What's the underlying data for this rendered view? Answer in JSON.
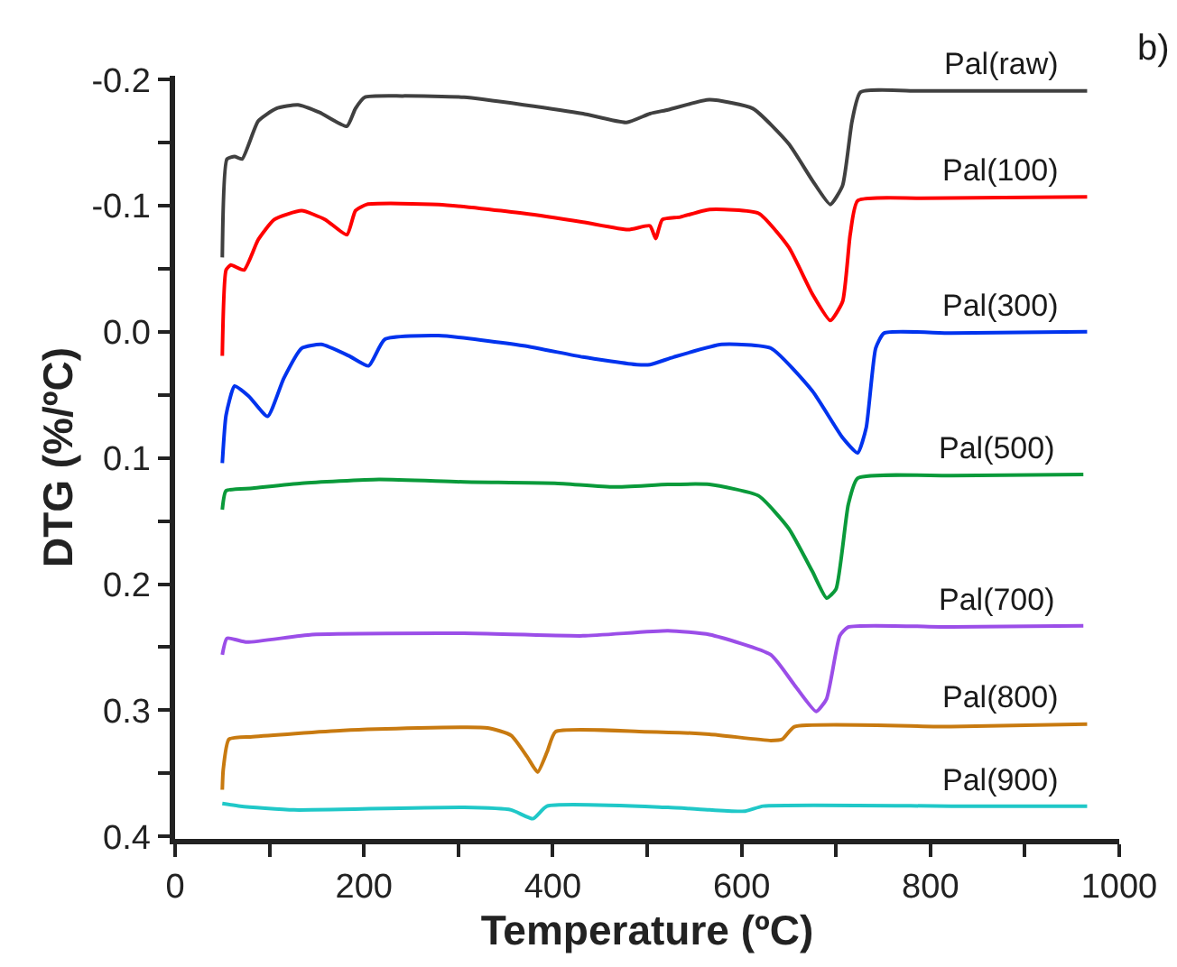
{
  "chart_data": {
    "type": "line",
    "xlabel": "Temperature (ºC)",
    "ylabel": "DTG (%/ºC)",
    "annotations": [
      "b)"
    ],
    "xlim": [
      0,
      1000
    ],
    "ylim": [
      0.402,
      -0.203
    ],
    "xticks": [
      0,
      {
        "value": 100,
        "label": null
      },
      200,
      {
        "value": 300,
        "label": null
      },
      400,
      {
        "value": 500,
        "label": null
      },
      600,
      {
        "value": 700,
        "label": null
      },
      800,
      {
        "value": 900,
        "label": null
      },
      1000
    ],
    "yticks": [
      -0.2,
      {
        "value": -0.15,
        "label": null
      },
      -0.1,
      {
        "value": -0.05,
        "label": null
      },
      {
        "value": 0,
        "label": "0.0"
      },
      {
        "value": 0.05,
        "label": null
      },
      0.1,
      {
        "value": 0.15,
        "label": null
      },
      0.2,
      {
        "value": 0.25,
        "label": null
      },
      0.3,
      {
        "value": 0.35,
        "label": null
      },
      0.4
    ],
    "legend": false,
    "marker": "none",
    "line_style": "solid",
    "series": [
      {
        "name": "Pal(raw)",
        "color": "#404040",
        "x": [
          50,
          55,
          63,
          71,
          88,
          107,
          130,
          153,
          182,
          191,
          201,
          241,
          306,
          369,
          432,
          478,
          503,
          522,
          566,
          612,
          650,
          675,
          694,
          707,
          717,
          726,
          790,
          966
        ],
        "values": [
          -0.059,
          -0.137,
          -0.139,
          -0.137,
          -0.167,
          -0.177,
          -0.18,
          -0.174,
          -0.163,
          -0.177,
          -0.186,
          -0.187,
          -0.186,
          -0.18,
          -0.173,
          -0.166,
          -0.173,
          -0.176,
          -0.184,
          -0.177,
          -0.149,
          -0.12,
          -0.101,
          -0.116,
          -0.167,
          -0.19,
          -0.191,
          -0.191
        ]
      },
      {
        "name": "Pal(100)",
        "color": "#ff0000",
        "x": [
          50,
          54,
          59,
          73,
          88,
          105,
          134,
          159,
          182,
          191,
          203,
          279,
          369,
          432,
          480,
          503,
          509,
          516,
          535,
          566,
          618,
          650,
          675,
          694,
          707,
          715,
          723,
          790,
          966
        ],
        "values": [
          0.019,
          -0.049,
          -0.053,
          -0.049,
          -0.073,
          -0.089,
          -0.096,
          -0.089,
          -0.077,
          -0.096,
          -0.101,
          -0.101,
          -0.094,
          -0.087,
          -0.081,
          -0.084,
          -0.074,
          -0.089,
          -0.091,
          -0.097,
          -0.094,
          -0.067,
          -0.03,
          -0.009,
          -0.024,
          -0.077,
          -0.104,
          -0.106,
          -0.107
        ]
      },
      {
        "name": "Pal(300)",
        "color": "#0033ee",
        "x": [
          50,
          54,
          63,
          78,
          98,
          115,
          134,
          155,
          184,
          205,
          222,
          279,
          369,
          432,
          489,
          503,
          528,
          579,
          631,
          675,
          707,
          723,
          732,
          742,
          751,
          822,
          966
        ],
        "values": [
          0.104,
          0.066,
          0.043,
          0.051,
          0.067,
          0.037,
          0.013,
          0.01,
          0.019,
          0.027,
          0.006,
          0.003,
          0.011,
          0.02,
          0.026,
          0.026,
          0.02,
          0.01,
          0.013,
          0.047,
          0.084,
          0.096,
          0.076,
          0.013,
          0.001,
          0.001,
          0.0
        ]
      },
      {
        "name": "Pal(500)",
        "color": "#0a9a3a",
        "x": [
          50,
          54,
          82,
          134,
          216,
          306,
          402,
          465,
          522,
          566,
          618,
          650,
          675,
          690,
          700,
          713,
          723,
          822,
          962
        ],
        "values": [
          0.141,
          0.126,
          0.124,
          0.12,
          0.117,
          0.119,
          0.12,
          0.123,
          0.121,
          0.121,
          0.13,
          0.156,
          0.19,
          0.211,
          0.204,
          0.137,
          0.116,
          0.114,
          0.113
        ]
      },
      {
        "name": "Pal(700)",
        "color": "#9b4ee8",
        "x": [
          50,
          55,
          76,
          145,
          306,
          432,
          522,
          566,
          631,
          656,
          679,
          690,
          704,
          713,
          822,
          962
        ],
        "values": [
          0.256,
          0.243,
          0.246,
          0.24,
          0.239,
          0.241,
          0.237,
          0.24,
          0.256,
          0.28,
          0.301,
          0.291,
          0.241,
          0.234,
          0.234,
          0.233
        ]
      },
      {
        "name": "Pal(800)",
        "color": "#c87a10",
        "x": [
          50,
          51,
          57,
          82,
          178,
          331,
          356,
          373,
          384,
          394,
          403,
          497,
          566,
          631,
          643,
          656,
          822,
          966
        ],
        "values": [
          0.363,
          0.347,
          0.323,
          0.321,
          0.316,
          0.314,
          0.32,
          0.337,
          0.349,
          0.333,
          0.317,
          0.317,
          0.319,
          0.324,
          0.323,
          0.313,
          0.313,
          0.311
        ]
      },
      {
        "name": "Pal(900)",
        "color": "#20c8c8",
        "x": [
          50,
          69,
          126,
          306,
          356,
          379,
          394,
          522,
          566,
          604,
          623,
          822,
          966
        ],
        "values": [
          0.374,
          0.376,
          0.379,
          0.377,
          0.379,
          0.386,
          0.376,
          0.377,
          0.379,
          0.38,
          0.376,
          0.376,
          0.376
        ]
      }
    ]
  }
}
